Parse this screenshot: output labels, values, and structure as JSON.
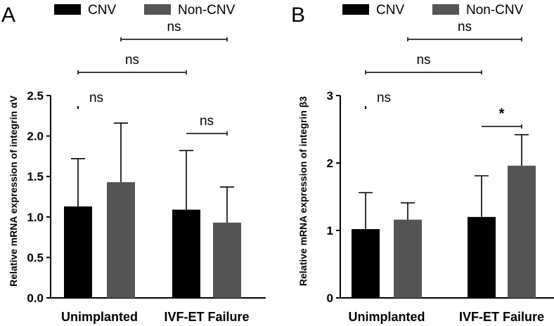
{
  "legend": {
    "series": [
      {
        "name": "CNV",
        "color": "#000000"
      },
      {
        "name": "Non-CNV",
        "color": "#555555"
      }
    ]
  },
  "chart_data": [
    {
      "panel_label": "A",
      "type": "bar",
      "title": "",
      "xlabel": "",
      "ylabel": "Relative mRNA expression of integrin αV",
      "categories": [
        "Unimplanted",
        "IVF-ET Failure"
      ],
      "series": [
        {
          "name": "CNV",
          "values": [
            1.13,
            1.09
          ],
          "error": [
            0.59,
            0.73
          ],
          "color": "#000000"
        },
        {
          "name": "Non-CNV",
          "values": [
            1.43,
            0.93
          ],
          "error": [
            0.73,
            0.44
          ],
          "color": "#555555"
        }
      ],
      "ylim": [
        0,
        2.5
      ],
      "yticks": [
        "0.0",
        "0.5",
        "1.0",
        "1.5",
        "2.0",
        "2.5"
      ],
      "grid": false,
      "annotations": [
        {
          "text": "ns",
          "type": "within",
          "category": 0
        },
        {
          "text": "ns",
          "type": "within",
          "category": 1
        },
        {
          "text": "ns",
          "type": "across",
          "series": "CNV"
        },
        {
          "text": "ns",
          "type": "across",
          "series": "Non-CNV"
        }
      ]
    },
    {
      "panel_label": "B",
      "type": "bar",
      "title": "",
      "xlabel": "",
      "ylabel": "Relative mRNA expression of integrin β3",
      "categories": [
        "Unimplanted",
        "IVF-ET Failure"
      ],
      "series": [
        {
          "name": "CNV",
          "values": [
            1.02,
            1.2
          ],
          "error": [
            0.54,
            0.61
          ],
          "color": "#000000"
        },
        {
          "name": "Non-CNV",
          "values": [
            1.16,
            1.96
          ],
          "error": [
            0.25,
            0.46
          ],
          "color": "#555555"
        }
      ],
      "ylim": [
        0,
        3
      ],
      "yticks": [
        "0",
        "1",
        "2",
        "3"
      ],
      "grid": false,
      "annotations": [
        {
          "text": "ns",
          "type": "within",
          "category": 0
        },
        {
          "text": "*",
          "type": "within",
          "category": 1
        },
        {
          "text": "ns",
          "type": "across",
          "series": "CNV"
        },
        {
          "text": "ns",
          "type": "across",
          "series": "Non-CNV"
        }
      ]
    }
  ]
}
